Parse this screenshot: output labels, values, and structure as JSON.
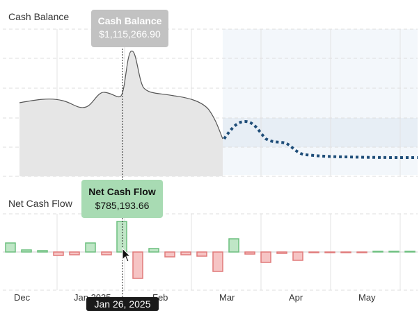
{
  "cash_balance": {
    "title": "Cash Balance",
    "tooltip_title": "Cash Balance",
    "tooltip_value": "$1,115,266.90"
  },
  "net_cash_flow": {
    "title": "Net Cash Flow",
    "tooltip_title": "Net Cash Flow",
    "tooltip_value": "$785,193.66"
  },
  "x_axis": {
    "labels": [
      "Dec",
      "Jan 2025",
      "Feb",
      "Mar",
      "Apr",
      "May"
    ],
    "hover_date": "Jan 26, 2025"
  },
  "colors": {
    "actual_line": "#555555",
    "forecast_line": "#1f4e79",
    "positive_bar_fill": "#bfe6c6",
    "positive_bar_stroke": "#6cbf7f",
    "negative_bar_fill": "#f6c4c4",
    "negative_bar_stroke": "#e07a7a",
    "forecast_region": "#f3f7fb"
  },
  "chart_data": [
    {
      "type": "area",
      "title": "Cash Balance",
      "note_forecast_start": "Mar",
      "series": [
        {
          "values_relative": [
            0.46,
            0.48,
            0.5,
            0.49,
            0.44,
            0.43,
            0.52,
            0.62,
            0.54,
            0.6,
            0.79,
            1.0,
            0.8,
            0.69,
            0.65,
            0.63,
            0.6,
            0.58,
            0.45,
            0.35
          ]
        },
        {
          "values_relative": [
            0.35,
            0.41,
            0.44,
            0.43,
            0.38,
            0.3,
            0.28,
            0.18,
            0.13,
            0.12,
            0.11,
            0.11,
            0.1,
            0.1,
            0.1,
            0.1
          ]
        }
      ]
    },
    {
      "type": "bar",
      "title": "Net Cash Flow",
      "values_relative": [
        0.3,
        0.08,
        0.05,
        -0.1,
        -0.08,
        0.3,
        -0.1,
        1.0,
        -0.9,
        0.1,
        -0.14,
        -0.1,
        -0.12,
        -0.65,
        0.45,
        -0.08,
        -0.38,
        -0.04,
        -0.33,
        -0.04,
        -0.04,
        -0.03,
        -0.02,
        0.02,
        0.02
      ]
    }
  ]
}
